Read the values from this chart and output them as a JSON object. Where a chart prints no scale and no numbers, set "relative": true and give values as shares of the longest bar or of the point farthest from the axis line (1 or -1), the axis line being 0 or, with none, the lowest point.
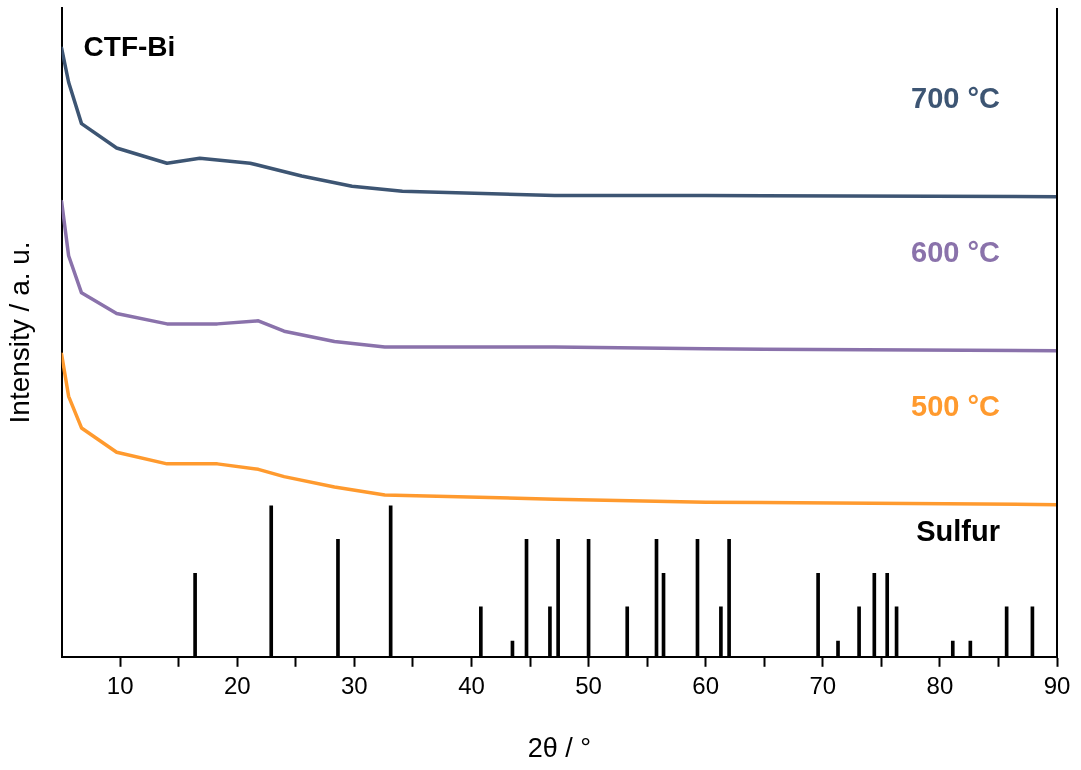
{
  "chart_data": {
    "type": "line",
    "relative": true,
    "xlabel": "2θ / °",
    "ylabel": "Intensity / a. u.",
    "xlim": [
      5,
      90
    ],
    "xticks": [
      10,
      {
        "value": 15,
        "label": null
      },
      20,
      {
        "value": 25,
        "label": null
      },
      30,
      {
        "value": 35,
        "label": null
      },
      40,
      {
        "value": 45,
        "label": null
      },
      50,
      {
        "value": 55,
        "label": null
      },
      60,
      {
        "value": 65,
        "label": null
      },
      70,
      {
        "value": 75,
        "label": null
      },
      80,
      {
        "value": 85,
        "label": null
      },
      90
    ],
    "grid": false,
    "legend": false,
    "marker": "none",
    "line_style": "solid",
    "annotations": [
      "CTF-Bi"
    ],
    "series": [
      {
        "name": "700 °C",
        "color": "#3d5573",
        "x": [
          5,
          5.6,
          6.7,
          9.7,
          14,
          16.8,
          21.1,
          25.5,
          29.8,
          34.1,
          47.1,
          60,
          90
        ],
        "values": [
          1.0,
          0.944,
          0.876,
          0.836,
          0.811,
          0.819,
          0.811,
          0.79,
          0.773,
          0.765,
          0.758,
          0.758,
          0.756
        ]
      },
      {
        "name": "600 °C",
        "color": "#8a72ab",
        "x": [
          5,
          5.6,
          6.7,
          9.7,
          14,
          18.3,
          21.8,
          24,
          28.3,
          32.6,
          47.1,
          60,
          90
        ],
        "values": [
          0.748,
          0.659,
          0.598,
          0.564,
          0.547,
          0.547,
          0.552,
          0.535,
          0.518,
          0.509,
          0.509,
          0.506,
          0.503
        ]
      },
      {
        "name": "500 °C",
        "color": "#ff9a2e",
        "x": [
          5,
          5.6,
          6.7,
          9.7,
          14,
          18.3,
          21.8,
          24,
          28.3,
          32.6,
          47.1,
          60,
          90
        ],
        "values": [
          0.497,
          0.428,
          0.376,
          0.336,
          0.317,
          0.317,
          0.308,
          0.296,
          0.279,
          0.266,
          0.259,
          0.254,
          0.25
        ]
      },
      {
        "name": "Sulfur",
        "type": "bar",
        "color": "#000000",
        "x": [
          16.4,
          22.9,
          28.6,
          33.1,
          40.8,
          43.5,
          44.7,
          46.7,
          47.4,
          50.0,
          53.3,
          55.8,
          56.4,
          59.3,
          61.3,
          62.0,
          69.6,
          71.3,
          73.1,
          74.4,
          75.5,
          76.3,
          81.1,
          82.6,
          85.7,
          87.9
        ],
        "values": [
          0.137,
          0.248,
          0.193,
          0.248,
          0.082,
          0.026,
          0.193,
          0.082,
          0.193,
          0.193,
          0.082,
          0.193,
          0.137,
          0.193,
          0.082,
          0.193,
          0.137,
          0.026,
          0.082,
          0.137,
          0.137,
          0.082,
          0.026,
          0.026,
          0.082,
          0.082
        ]
      }
    ]
  }
}
